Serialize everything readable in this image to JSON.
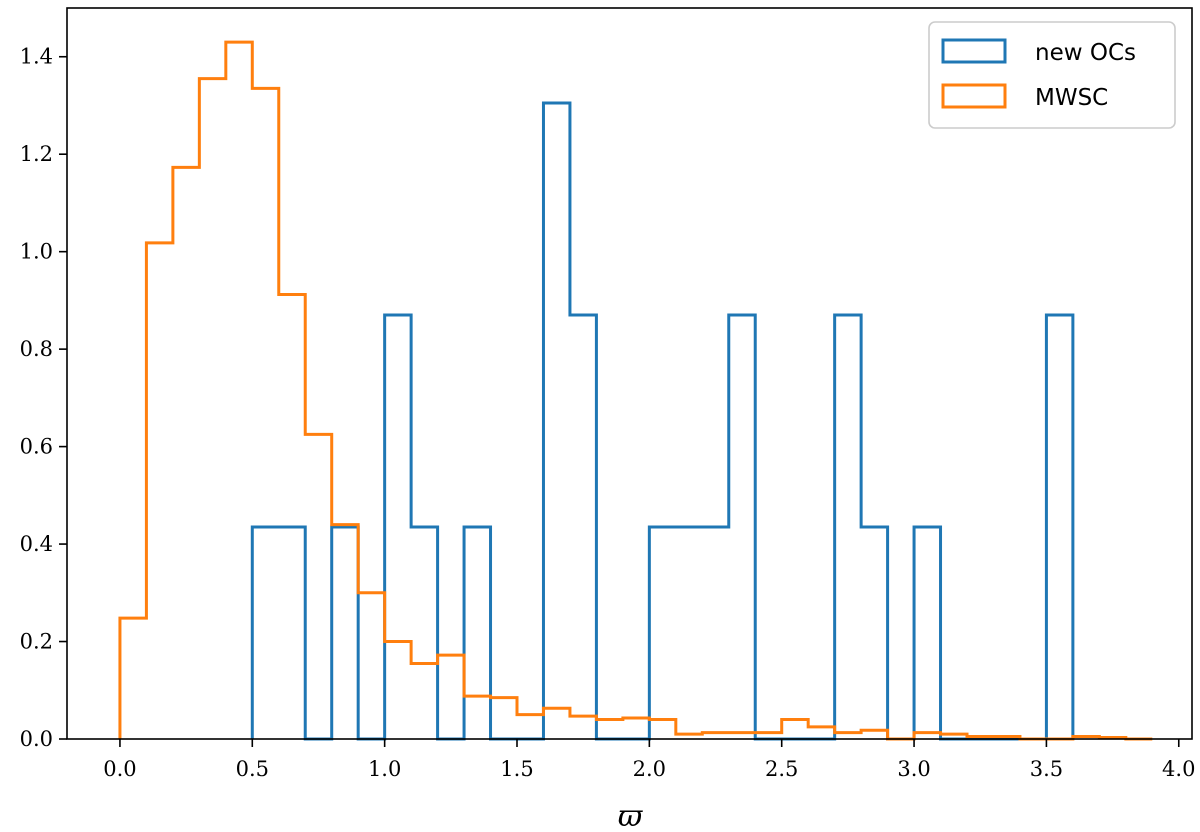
{
  "chart_data": {
    "type": "histogram",
    "title": "",
    "xlabel": "ϖ",
    "ylabel": "",
    "xlim": [
      -0.2,
      4.05
    ],
    "ylim": [
      0.0,
      1.5
    ],
    "xticks": [
      0.0,
      0.5,
      1.0,
      1.5,
      2.0,
      2.5,
      3.0,
      3.5,
      4.0
    ],
    "xtick_labels": [
      "0.0",
      "0.5",
      "1.0",
      "1.5",
      "2.0",
      "2.5",
      "3.0",
      "3.5",
      "4.0"
    ],
    "yticks": [
      0.0,
      0.2,
      0.4,
      0.6,
      0.8,
      1.0,
      1.2,
      1.4
    ],
    "ytick_labels": [
      "0.0",
      "0.2",
      "0.4",
      "0.6",
      "0.8",
      "1.0",
      "1.2",
      "1.4"
    ],
    "grid": false,
    "legend_position": "top-right",
    "series": [
      {
        "name": "new OCs",
        "color": "#1f77b4",
        "bin_edges": [
          0.5,
          0.6,
          0.7,
          0.8,
          0.9,
          1.0,
          1.1,
          1.2,
          1.3,
          1.4,
          1.5,
          1.6,
          1.7,
          1.8,
          1.9,
          2.0,
          2.1,
          2.2,
          2.3,
          2.4,
          2.5,
          2.6,
          2.7,
          2.8,
          2.9,
          3.0,
          3.1,
          3.2,
          3.3,
          3.4,
          3.5,
          3.6
        ],
        "values": [
          0.435,
          0.435,
          0.0,
          0.435,
          0.0,
          0.87,
          0.435,
          0.0,
          0.435,
          0.0,
          0.0,
          1.305,
          0.87,
          0.0,
          0.0,
          0.435,
          0.435,
          0.435,
          0.87,
          0.0,
          0.0,
          0.0,
          0.87,
          0.435,
          0.0,
          0.435,
          0.0,
          0.0,
          0.0,
          0.0,
          0.87
        ]
      },
      {
        "name": "MWSC",
        "color": "#ff7f0e",
        "bin_edges": [
          0.0,
          0.1,
          0.2,
          0.3,
          0.4,
          0.5,
          0.6,
          0.7,
          0.8,
          0.9,
          1.0,
          1.1,
          1.2,
          1.3,
          1.4,
          1.5,
          1.6,
          1.7,
          1.8,
          1.9,
          2.0,
          2.1,
          2.2,
          2.3,
          2.4,
          2.5,
          2.6,
          2.7,
          2.8,
          2.9,
          3.0,
          3.1,
          3.2,
          3.3,
          3.4,
          3.5,
          3.6,
          3.7,
          3.8,
          3.9
        ],
        "values": [
          0.248,
          1.018,
          1.173,
          1.355,
          1.43,
          1.335,
          0.912,
          0.625,
          0.44,
          0.3,
          0.2,
          0.155,
          0.172,
          0.088,
          0.085,
          0.05,
          0.063,
          0.047,
          0.04,
          0.043,
          0.04,
          0.01,
          0.013,
          0.013,
          0.013,
          0.04,
          0.025,
          0.013,
          0.018,
          0.0,
          0.013,
          0.01,
          0.005,
          0.005,
          0.0,
          0.0,
          0.005,
          0.003,
          0.0
        ]
      }
    ]
  }
}
